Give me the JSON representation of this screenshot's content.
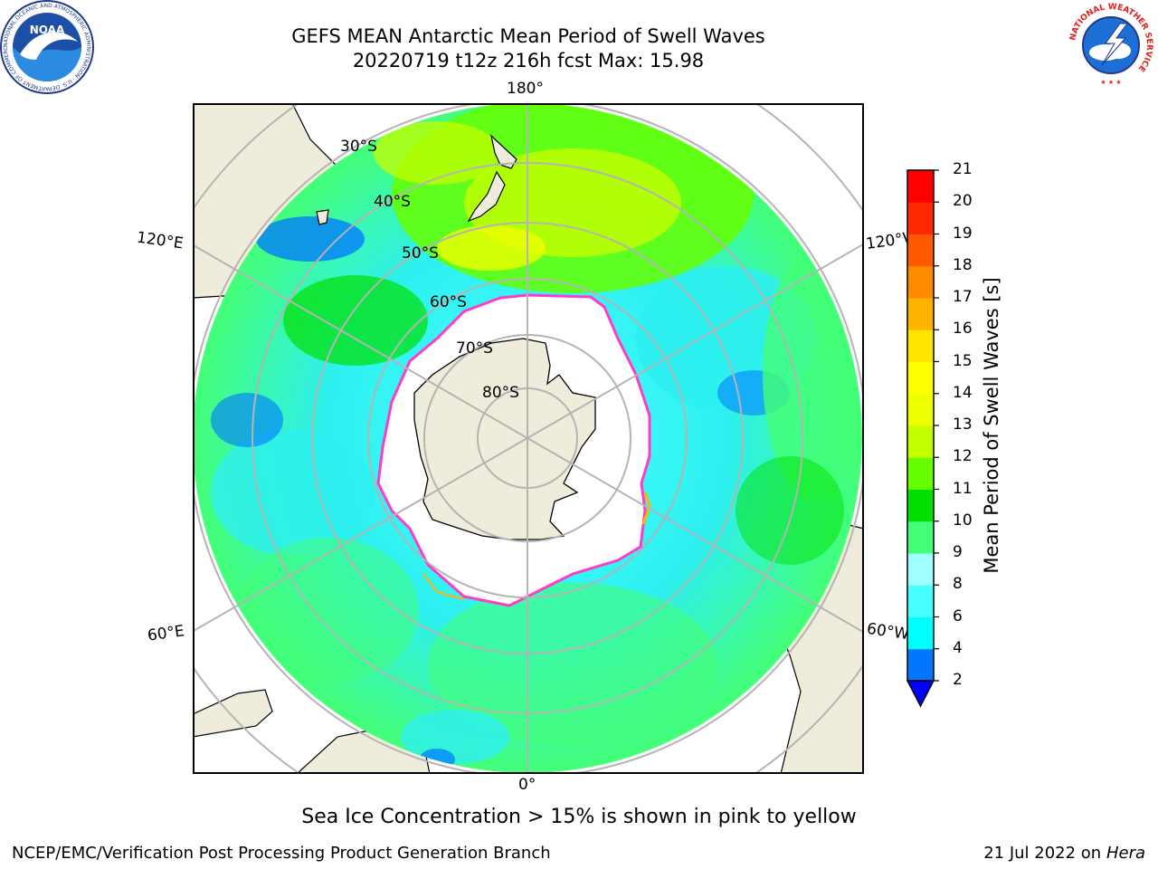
{
  "header": {
    "title_line1": "GEFS MEAN Antarctic Mean Period of Swell Waves",
    "title_line2": "20220719 t12z 216h fcst   Max: 15.98",
    "noaa_logo_text": "NOAA",
    "noaa_ring_text": "NATIONAL OCEANIC AND ATMOSPHERIC ADMINISTRATION · U.S. DEPARTMENT OF COMMERCE",
    "nws_ring_text": "NATIONAL WEATHER SERVICE"
  },
  "map": {
    "projection": "south-polar-stereographic",
    "longitude_labels": {
      "top": "180°",
      "bottom": "0°",
      "upper_left": "120°E",
      "upper_right": "120°W",
      "lower_left": "60°E",
      "lower_right": "60°W"
    },
    "latitude_labels": [
      "30°S",
      "40°S",
      "50°S",
      "60°S",
      "70°S",
      "80°S"
    ],
    "colors": {
      "land": "#efecdc",
      "ice": "#ffffff",
      "coast": "#000000",
      "grid": "#b4b4b4",
      "ice_edge": "#ff3cc8"
    }
  },
  "colorbar": {
    "label": "Mean Period of Swell Waves [s]",
    "ticks": [
      "2",
      "4",
      "6",
      "8",
      "9",
      "10",
      "11",
      "12",
      "13",
      "14",
      "15",
      "16",
      "17",
      "18",
      "19",
      "20",
      "21"
    ],
    "colors": [
      "#0000ff",
      "#0076ff",
      "#00ffff",
      "#48ffff",
      "#a0ffff",
      "#44ff77",
      "#00e000",
      "#66ff00",
      "#c4ff00",
      "#eeff00",
      "#ffff00",
      "#ffe600",
      "#ffb400",
      "#ff8c00",
      "#ff5a00",
      "#ff2800",
      "#ff0000"
    ]
  },
  "caption": "Sea Ice Concentration > 15% is shown in pink to yellow",
  "footer": {
    "left": "NCEP/EMC/Verification Post Processing Product Generation Branch",
    "right_prefix": "21 Jul 2022 on ",
    "right_host": "Hera"
  }
}
